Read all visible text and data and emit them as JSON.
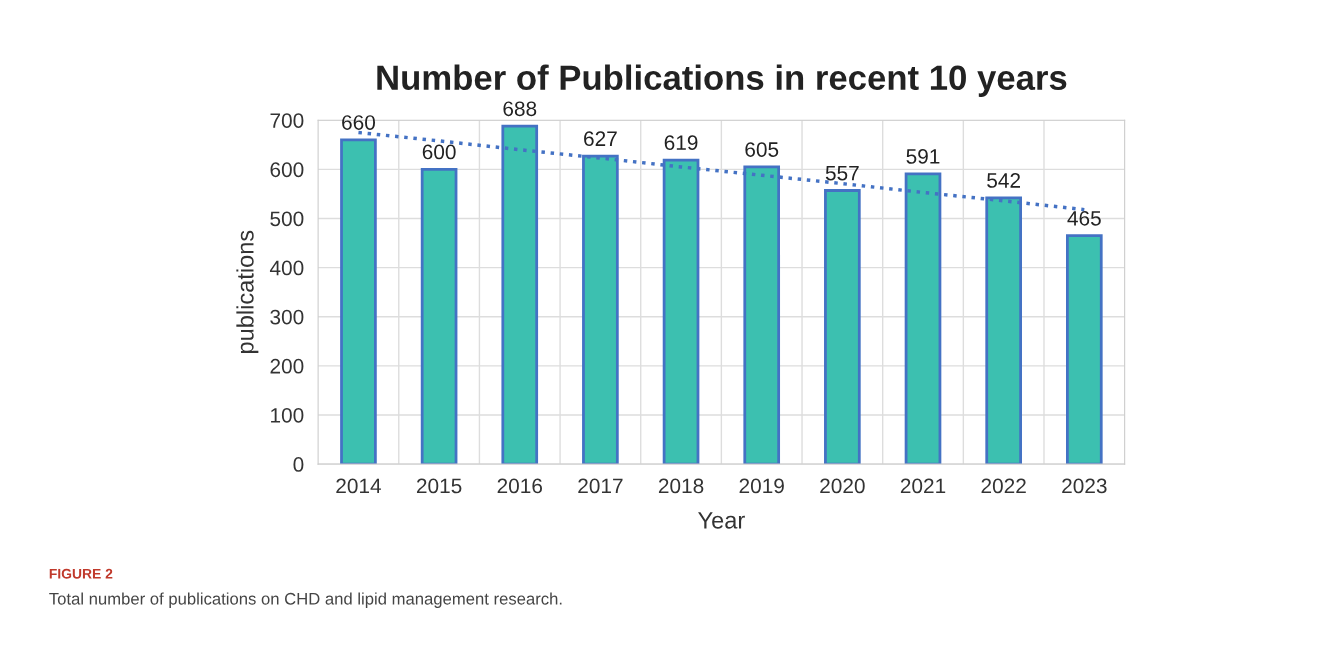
{
  "chart_data": {
    "type": "bar",
    "title": "Number of Publications in recent 10 years",
    "xlabel": "Year",
    "ylabel": "publications",
    "categories": [
      "2014",
      "2015",
      "2016",
      "2017",
      "2018",
      "2019",
      "2020",
      "2021",
      "2022",
      "2023"
    ],
    "series": [
      {
        "color": "#3cc0b0",
        "values": [
          660,
          600,
          688,
          627,
          619,
          605,
          557,
          591,
          542,
          465
        ],
        "value_labels": [
          "660",
          "600",
          "688",
          "627",
          "619",
          "605",
          "557",
          "591",
          "542",
          "465"
        ]
      },
      {
        "type": "line",
        "color": "#4472c4",
        "line_style": "dotted",
        "values": [
          675,
          658,
          640,
          623,
          605,
          588,
          571,
          553,
          536,
          518
        ]
      }
    ],
    "ylim": [
      0,
      700
    ],
    "yticks": [
      0,
      100,
      200,
      300,
      400,
      500,
      600,
      700
    ],
    "grid": true,
    "annotations": [
      "FIGURE 2",
      "Total number of publications on CHD and lipid management research."
    ]
  }
}
